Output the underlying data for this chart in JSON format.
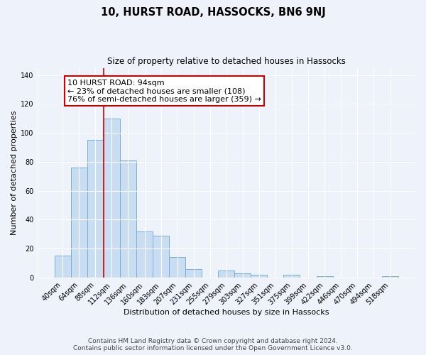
{
  "title": "10, HURST ROAD, HASSOCKS, BN6 9NJ",
  "subtitle": "Size of property relative to detached houses in Hassocks",
  "xlabel": "Distribution of detached houses by size in Hassocks",
  "ylabel": "Number of detached properties",
  "bar_labels": [
    "40sqm",
    "64sqm",
    "88sqm",
    "112sqm",
    "136sqm",
    "160sqm",
    "183sqm",
    "207sqm",
    "231sqm",
    "255sqm",
    "279sqm",
    "303sqm",
    "327sqm",
    "351sqm",
    "375sqm",
    "399sqm",
    "422sqm",
    "446sqm",
    "470sqm",
    "494sqm",
    "518sqm"
  ],
  "bar_values": [
    15,
    76,
    95,
    110,
    81,
    32,
    29,
    14,
    6,
    0,
    5,
    3,
    2,
    0,
    2,
    0,
    1,
    0,
    0,
    0,
    1
  ],
  "bar_color": "#c9ddf2",
  "bar_edge_color": "#7aafd4",
  "vline_color": "#cc0000",
  "annotation_text": "10 HURST ROAD: 94sqm\n← 23% of detached houses are smaller (108)\n76% of semi-detached houses are larger (359) →",
  "annotation_box_color": "white",
  "annotation_box_edge_color": "#cc0000",
  "ylim": [
    0,
    145
  ],
  "yticks": [
    0,
    20,
    40,
    60,
    80,
    100,
    120,
    140
  ],
  "footer_line1": "Contains HM Land Registry data © Crown copyright and database right 2024.",
  "footer_line2": "Contains public sector information licensed under the Open Government Licence v3.0.",
  "background_color": "#eef2fa",
  "plot_bg_color": "#eef2fa",
  "grid_color": "#ffffff",
  "title_fontsize": 10.5,
  "subtitle_fontsize": 8.5,
  "axis_label_fontsize": 8,
  "tick_fontsize": 7,
  "annotation_fontsize": 8,
  "footer_fontsize": 6.5
}
